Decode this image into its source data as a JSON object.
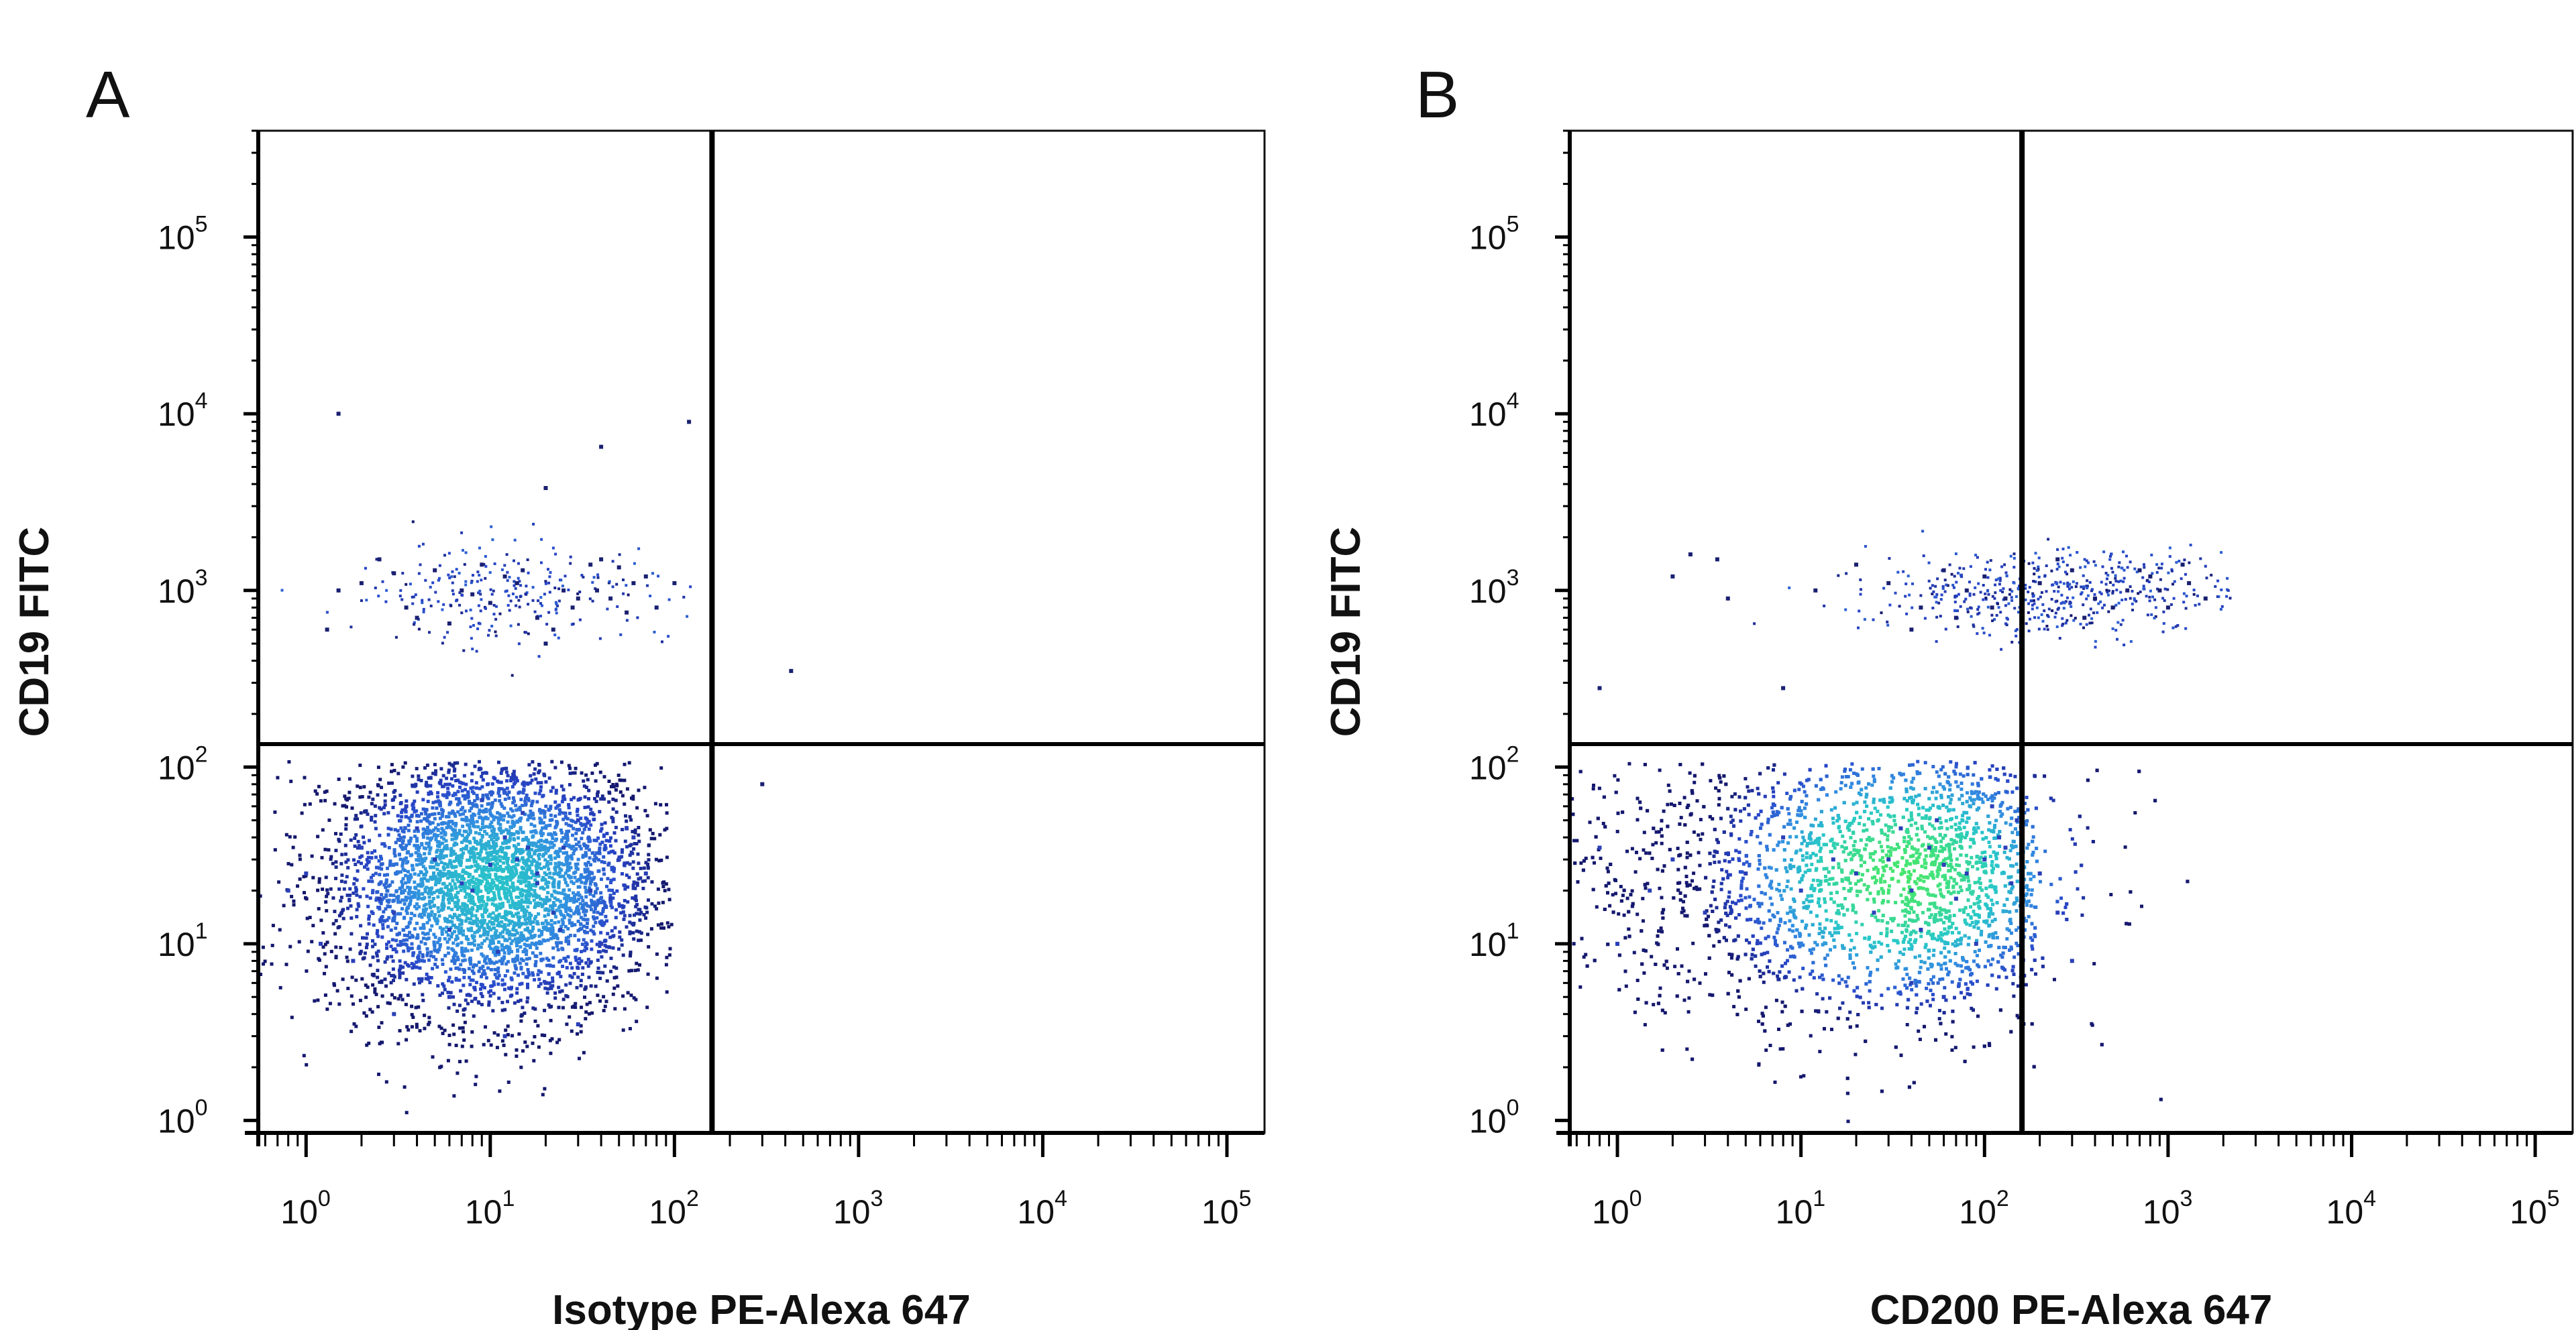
{
  "chart_data": [
    {
      "type": "scatter",
      "panel_label": "A",
      "xlabel": "Isotype PE-Alexa 647",
      "ylabel": "CD19 FITC",
      "xscale": "log",
      "yscale": "log",
      "xlim": [
        0.55,
        160000
      ],
      "ylim": [
        0.85,
        400000
      ],
      "x_ticks": [
        {
          "base": "10",
          "exp": "0"
        },
        {
          "base": "10",
          "exp": "1"
        },
        {
          "base": "10",
          "exp": "2"
        },
        {
          "base": "10",
          "exp": "3"
        },
        {
          "base": "10",
          "exp": "4"
        },
        {
          "base": "10",
          "exp": "5"
        }
      ],
      "y_ticks": [
        {
          "base": "10",
          "exp": "0"
        },
        {
          "base": "10",
          "exp": "1"
        },
        {
          "base": "10",
          "exp": "2"
        },
        {
          "base": "10",
          "exp": "3"
        },
        {
          "base": "10",
          "exp": "4"
        },
        {
          "base": "10",
          "exp": "5"
        }
      ],
      "x_tick_values": [
        1,
        10,
        100,
        1000,
        10000,
        100000
      ],
      "y_tick_values": [
        1,
        10,
        100,
        1000,
        10000,
        100000
      ],
      "quadrant_gate": {
        "x": 160,
        "y": 135
      },
      "series": [
        {
          "x": [
            2.0,
            3.5,
            5.0,
            8.0,
            12,
            18,
            25,
            35,
            45,
            60,
            1.3,
            2.5,
            4.0,
            7.0,
            10,
            15,
            22,
            30,
            40,
            55,
            70,
            1.5,
            3.0,
            6.0,
            9.0,
            14,
            20,
            28,
            38,
            50,
            80,
            100
          ],
          "y": [
            1100,
            800,
            1300,
            950,
            1200,
            700,
            1000,
            1400,
            900,
            1100,
            600,
            1500,
            700,
            1000,
            850,
            1300,
            600,
            900,
            1500,
            750,
            1200,
            1000,
            1250,
            650,
            1400,
            1100,
            500,
            800,
            1000,
            1350,
            800,
            1100
          ]
        },
        {
          "x": [
            1.5,
            40,
            20,
            120,
            430,
            300
          ],
          "y": [
            10000,
            6500,
            3800,
            9000,
            350,
            80
          ]
        },
        {
          "x": [
            1,
            2,
            3,
            5,
            8,
            12,
            18,
            25,
            35,
            50,
            70,
            1.2,
            2.5,
            4,
            6,
            10,
            15,
            22,
            30,
            45,
            60,
            0.8,
            1.8,
            3.5,
            7,
            11,
            16,
            24,
            40,
            55,
            3,
            6,
            12,
            20,
            30,
            9,
            14,
            18
          ],
          "y": [
            25,
            35,
            15,
            30,
            20,
            40,
            25,
            35,
            20,
            30,
            25,
            10,
            18,
            45,
            12,
            28,
            55,
            15,
            50,
            18,
            40,
            20,
            8,
            60,
            22,
            9,
            35,
            12,
            10,
            45,
            4,
            5,
            3,
            6,
            3.5,
            65,
            30,
            22
          ]
        }
      ]
    },
    {
      "type": "scatter",
      "panel_label": "B",
      "xlabel": "CD200 PE-Alexa 647",
      "ylabel": "CD19 FITC",
      "xscale": "log",
      "yscale": "log",
      "xlim": [
        0.55,
        160000
      ],
      "ylim": [
        0.85,
        400000
      ],
      "x_ticks": [
        {
          "base": "10",
          "exp": "0"
        },
        {
          "base": "10",
          "exp": "1"
        },
        {
          "base": "10",
          "exp": "2"
        },
        {
          "base": "10",
          "exp": "3"
        },
        {
          "base": "10",
          "exp": "4"
        },
        {
          "base": "10",
          "exp": "5"
        }
      ],
      "y_ticks": [
        {
          "base": "10",
          "exp": "0"
        },
        {
          "base": "10",
          "exp": "1"
        },
        {
          "base": "10",
          "exp": "2"
        },
        {
          "base": "10",
          "exp": "3"
        },
        {
          "base": "10",
          "exp": "4"
        },
        {
          "base": "10",
          "exp": "5"
        }
      ],
      "x_tick_values": [
        1,
        10,
        100,
        1000,
        10000,
        100000
      ],
      "y_tick_values": [
        1,
        10,
        100,
        1000,
        10000,
        100000
      ],
      "quadrant_gate": {
        "x": 160,
        "y": 135
      },
      "series": [
        {
          "x": [
            30,
            45,
            60,
            80,
            100,
            130,
            200,
            300,
            400,
            600,
            800,
            1000,
            1300,
            1600,
            20,
            70,
            250,
            500,
            700,
            900,
            1200,
            12,
            40,
            110,
            350
          ],
          "y": [
            1100,
            800,
            1300,
            1000,
            1200,
            900,
            1100,
            1300,
            900,
            1000,
            1200,
            800,
            1100,
            900,
            1400,
            700,
            1500,
            800,
            1300,
            1000,
            1400,
            1000,
            600,
            800,
            700
          ]
        },
        {
          "x": [
            2.5,
            3.5,
            2.0,
            0.8,
            8,
            4
          ],
          "y": [
            1600,
            1500,
            1200,
            280,
            280,
            900
          ]
        },
        {
          "x": [
            20,
            30,
            40,
            50,
            60,
            80,
            100,
            120,
            140,
            25,
            35,
            45,
            55,
            70,
            90,
            110,
            130,
            15,
            10,
            8,
            5,
            3,
            2,
            1.5,
            1,
            0.8,
            200,
            250,
            300,
            150,
            60,
            40
          ],
          "y": [
            25,
            30,
            20,
            35,
            28,
            25,
            30,
            40,
            22,
            15,
            45,
            12,
            50,
            18,
            10,
            60,
            35,
            30,
            20,
            40,
            25,
            15,
            30,
            20,
            10,
            35,
            25,
            15,
            8,
            50,
            5,
            6
          ]
        }
      ]
    }
  ]
}
